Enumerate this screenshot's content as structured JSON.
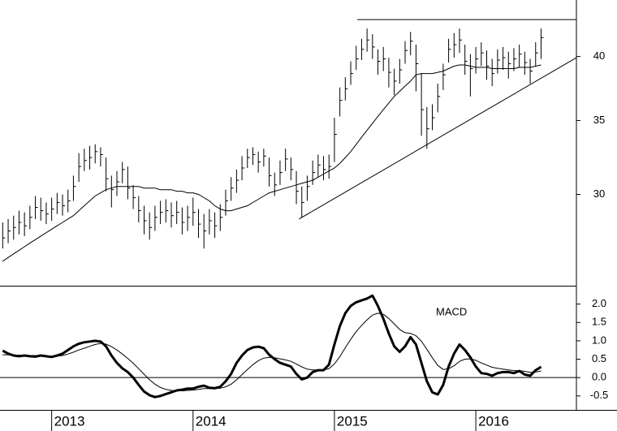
{
  "chart_data": [
    {
      "type": "ohlc",
      "log": true,
      "categories": [
        null,
        null,
        null,
        null,
        null,
        null,
        null,
        null,
        null,
        "2013",
        null,
        null,
        null,
        null,
        null,
        null,
        null,
        null,
        null,
        null,
        null,
        null,
        null,
        null,
        null,
        null,
        null,
        null,
        null,
        null,
        null,
        null,
        null,
        null,
        null,
        "2014",
        null,
        null,
        null,
        null,
        null,
        null,
        null,
        null,
        null,
        null,
        null,
        null,
        null,
        null,
        null,
        null,
        null,
        null,
        null,
        null,
        null,
        null,
        null,
        null,
        null,
        "2015",
        null,
        null,
        null,
        null,
        null,
        null,
        null,
        null,
        null,
        null,
        null,
        null,
        null,
        null,
        null,
        null,
        null,
        null,
        null,
        null,
        null,
        null,
        null,
        null,
        null,
        "2016",
        null,
        null,
        null,
        null,
        null,
        null,
        null,
        null,
        null,
        null,
        null,
        null
      ],
      "xlim": [
        -0.5,
        105.5
      ],
      "high": [
        28.3,
        28.5,
        28.7,
        29.0,
        28.9,
        29.3,
        29.9,
        29.8,
        29.5,
        29.8,
        30.1,
        30.0,
        30.3,
        31.2,
        32.7,
        33.0,
        33.2,
        33.3,
        33.1,
        32.4,
        31.2,
        31.5,
        32.1,
        31.8,
        30.6,
        29.9,
        29.3,
        28.9,
        29.3,
        29.6,
        29.7,
        29.5,
        29.6,
        29.2,
        29.3,
        29.8,
        29.1,
        28.8,
        29.1,
        28.9,
        29.4,
        30.3,
        31.1,
        31.6,
        32.5,
        33.0,
        33.1,
        32.8,
        33.0,
        32.4,
        31.4,
        32.2,
        33.0,
        32.4,
        31.5,
        30.5,
        31.2,
        32.2,
        32.6,
        32.5,
        32.6,
        35.2,
        37.5,
        38.3,
        39.6,
        40.9,
        41.5,
        42.4,
        41.9,
        40.6,
        40.8,
        39.9,
        39.0,
        39.8,
        41.3,
        42.1,
        41.0,
        38.6,
        36.0,
        36.2,
        37.8,
        39.4,
        41.5,
        42.0,
        42.4,
        41.0,
        40.2,
        40.8,
        41.2,
        40.5,
        39.8,
        40.6,
        40.8,
        40.4,
        40.7,
        41.0,
        40.4,
        39.8,
        41.2,
        42.4
      ],
      "low": [
        26.8,
        27.1,
        27.3,
        27.6,
        27.5,
        27.9,
        28.5,
        28.4,
        28.2,
        28.4,
        28.8,
        28.7,
        28.9,
        29.6,
        30.8,
        31.5,
        31.6,
        32.0,
        31.8,
        30.2,
        29.2,
        29.9,
        30.7,
        29.7,
        29.1,
        28.3,
        27.6,
        27.3,
        27.8,
        28.2,
        28.3,
        28.0,
        28.2,
        27.6,
        27.8,
        28.1,
        27.4,
        26.8,
        27.6,
        27.4,
        27.8,
        28.7,
        29.6,
        30.1,
        30.9,
        31.7,
        31.9,
        31.4,
        31.8,
        30.5,
        29.9,
        30.6,
        31.5,
        30.9,
        29.4,
        28.6,
        29.6,
        30.6,
        31.1,
        30.9,
        31.0,
        32.1,
        35.3,
        36.5,
        37.7,
        38.9,
        39.7,
        40.4,
        39.8,
        38.5,
        38.8,
        37.5,
        36.9,
        37.8,
        39.4,
        40.1,
        37.2,
        33.9,
        33.0,
        34.3,
        35.6,
        37.3,
        39.5,
        39.9,
        40.3,
        38.5,
        36.8,
        38.6,
        39.2,
        38.1,
        37.6,
        38.6,
        38.9,
        38.2,
        38.8,
        39.1,
        38.5,
        37.8,
        39.2,
        39.8
      ],
      "close": [
        27.4,
        27.8,
        28.0,
        28.3,
        28.1,
        28.6,
        29.2,
        29.0,
        28.8,
        29.1,
        29.5,
        29.3,
        29.6,
        30.5,
        31.8,
        32.2,
        32.4,
        32.8,
        32.6,
        31.0,
        30.3,
        30.8,
        31.6,
        30.4,
        29.8,
        29.0,
        28.4,
        28.0,
        28.6,
        28.9,
        29.0,
        28.7,
        28.9,
        28.3,
        28.6,
        28.9,
        28.2,
        27.8,
        28.4,
        28.1,
        28.6,
        29.6,
        30.4,
        30.9,
        31.7,
        32.4,
        32.6,
        32.1,
        32.5,
        31.2,
        30.6,
        31.4,
        32.3,
        31.6,
        30.2,
        29.5,
        30.5,
        31.4,
        31.9,
        31.6,
        31.8,
        34.0,
        36.5,
        37.4,
        38.6,
        39.8,
        40.6,
        41.4,
        40.8,
        39.6,
        39.8,
        38.7,
        38.0,
        38.9,
        40.5,
        41.3,
        39.4,
        35.8,
        34.4,
        35.2,
        36.8,
        38.5,
        40.6,
        41.0,
        41.4,
        39.6,
        39.0,
        39.8,
        40.3,
        39.2,
        38.6,
        39.7,
        39.9,
        39.4,
        39.8,
        40.2,
        39.5,
        38.8,
        40.3,
        41.6
      ],
      "color": "#000000",
      "moving_average": {
        "color": "#000000",
        "values": [
          26.1,
          26.3,
          26.5,
          26.7,
          26.9,
          27.1,
          27.3,
          27.5,
          27.7,
          27.9,
          28.1,
          28.3,
          28.5,
          28.7,
          29.0,
          29.3,
          29.6,
          29.9,
          30.1,
          30.3,
          30.4,
          30.5,
          30.5,
          30.5,
          30.5,
          30.5,
          30.4,
          30.4,
          30.4,
          30.3,
          30.3,
          30.3,
          30.2,
          30.2,
          30.1,
          30.1,
          30.0,
          29.8,
          29.6,
          29.3,
          29.1,
          29.0,
          29.0,
          29.1,
          29.2,
          29.3,
          29.5,
          29.7,
          29.9,
          30.1,
          30.2,
          30.3,
          30.4,
          30.5,
          30.6,
          30.7,
          30.8,
          30.9,
          31.1,
          31.3,
          31.5,
          31.7,
          32.0,
          32.4,
          32.8,
          33.3,
          33.8,
          34.3,
          34.8,
          35.3,
          35.8,
          36.3,
          36.8,
          37.2,
          37.6,
          38.0,
          38.5,
          38.6,
          38.6,
          38.6,
          38.7,
          38.8,
          39.0,
          39.2,
          39.3,
          39.3,
          39.2,
          39.1,
          39.1,
          39.1,
          39.0,
          39.0,
          39.0,
          39.0,
          39.0,
          39.1,
          39.1,
          39.1,
          39.2,
          39.3
        ]
      },
      "trendlines": [
        {
          "x": [
            65.2,
            105.5
          ],
          "values": [
            43.2,
            43.2
          ]
        },
        {
          "x": [
            54.5,
            105.5
          ],
          "values": [
            28.5,
            39.9
          ]
        }
      ],
      "ylim": [
        24.8,
        45.0
      ],
      "yticks": [
        30,
        35,
        40
      ]
    },
    {
      "type": "line",
      "annotation": "MACD",
      "series": [
        {
          "color": "#000000",
          "width": 3,
          "values": [
            0.73,
            0.65,
            0.6,
            0.58,
            0.6,
            0.58,
            0.57,
            0.6,
            0.58,
            0.56,
            0.6,
            0.65,
            0.75,
            0.85,
            0.92,
            0.96,
            0.98,
            1.0,
            0.98,
            0.85,
            0.6,
            0.4,
            0.25,
            0.15,
            0.0,
            -0.2,
            -0.38,
            -0.48,
            -0.53,
            -0.5,
            -0.45,
            -0.4,
            -0.35,
            -0.33,
            -0.3,
            -0.3,
            -0.25,
            -0.22,
            -0.28,
            -0.29,
            -0.25,
            -0.1,
            0.1,
            0.4,
            0.6,
            0.75,
            0.82,
            0.84,
            0.8,
            0.62,
            0.5,
            0.4,
            0.35,
            0.3,
            0.1,
            -0.05,
            0.0,
            0.15,
            0.2,
            0.2,
            0.35,
            0.9,
            1.4,
            1.75,
            1.95,
            2.05,
            2.1,
            2.15,
            2.23,
            1.95,
            1.6,
            1.2,
            0.85,
            0.7,
            0.85,
            1.1,
            0.9,
            0.4,
            -0.1,
            -0.4,
            -0.46,
            -0.2,
            0.3,
            0.65,
            0.9,
            0.75,
            0.55,
            0.3,
            0.12,
            0.1,
            0.05,
            0.12,
            0.15,
            0.15,
            0.12,
            0.18,
            0.08,
            0.05,
            0.2,
            0.29
          ]
        },
        {
          "color": "#000000",
          "width": 1,
          "values": [
            0.62,
            0.62,
            0.61,
            0.61,
            0.6,
            0.6,
            0.6,
            0.59,
            0.59,
            0.58,
            0.58,
            0.6,
            0.64,
            0.69,
            0.75,
            0.8,
            0.85,
            0.9,
            0.93,
            0.91,
            0.84,
            0.75,
            0.64,
            0.52,
            0.39,
            0.24,
            0.09,
            -0.06,
            -0.18,
            -0.27,
            -0.32,
            -0.35,
            -0.36,
            -0.36,
            -0.35,
            -0.34,
            -0.32,
            -0.3,
            -0.3,
            -0.3,
            -0.29,
            -0.25,
            -0.18,
            -0.06,
            0.08,
            0.22,
            0.35,
            0.46,
            0.53,
            0.55,
            0.54,
            0.51,
            0.48,
            0.44,
            0.37,
            0.29,
            0.23,
            0.21,
            0.21,
            0.21,
            0.24,
            0.37,
            0.57,
            0.81,
            1.04,
            1.25,
            1.42,
            1.57,
            1.7,
            1.75,
            1.72,
            1.61,
            1.46,
            1.31,
            1.22,
            1.2,
            1.14,
            0.99,
            0.77,
            0.54,
            0.33,
            0.22,
            0.24,
            0.32,
            0.44,
            0.5,
            0.51,
            0.47,
            0.4,
            0.34,
            0.28,
            0.25,
            0.23,
            0.21,
            0.19,
            0.19,
            0.17,
            0.14,
            0.15,
            0.18
          ]
        }
      ],
      "hline": 0,
      "ylim": [
        -0.88,
        2.5
      ],
      "yticks": [
        {
          "value": 2,
          "label": "2.0"
        },
        1.5,
        {
          "value": 1,
          "label": "1.0"
        },
        0.5,
        {
          "value": 0,
          "label": "0.0"
        },
        -0.5
      ]
    }
  ]
}
